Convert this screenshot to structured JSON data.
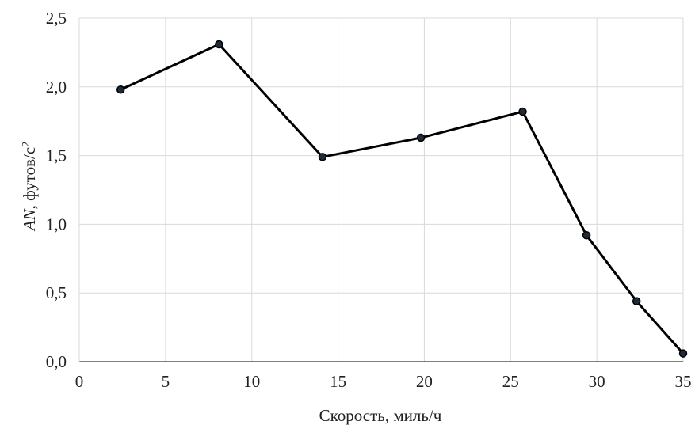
{
  "chart_data": {
    "type": "line",
    "title": "",
    "xlabel": "Скорость, миль/ч",
    "ylabel_parts": [
      "AN",
      ", футов/с",
      "2"
    ],
    "xlim": [
      0,
      35
    ],
    "ylim": [
      0,
      2.5
    ],
    "x_ticks": [
      0,
      5,
      10,
      15,
      20,
      25,
      30,
      35
    ],
    "y_ticks": [
      0,
      0.5,
      1,
      1.5,
      2,
      2.5
    ],
    "x_tick_labels": [
      "0",
      "5",
      "10",
      "15",
      "20",
      "25",
      "30",
      "35"
    ],
    "y_tick_labels": [
      "0,0",
      "0,5",
      "1,0",
      "1,5",
      "2,0",
      "2,5"
    ],
    "grid": true,
    "legend": "none",
    "series": [
      {
        "color": "#000000",
        "marker_color": "#1f2a3a",
        "x": [
          2.4,
          8.1,
          14.1,
          19.8,
          25.7,
          29.4,
          32.3,
          35.0
        ],
        "y": [
          1.98,
          2.31,
          1.49,
          1.63,
          1.82,
          0.92,
          0.44,
          0.06
        ]
      }
    ]
  }
}
